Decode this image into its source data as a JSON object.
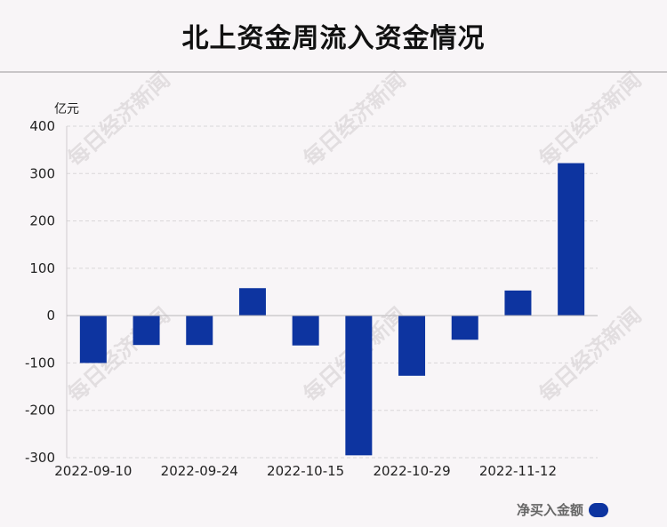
{
  "chart_data": {
    "type": "bar",
    "title": "北上资金周流入资金情况",
    "unit_label": "亿元",
    "xlabel": "",
    "ylabel": "",
    "ylim": [
      -300,
      400
    ],
    "yticks": [
      "400",
      "300",
      "200",
      "100",
      "0",
      "-100",
      "-200",
      "-300"
    ],
    "ytick_values": [
      400,
      300,
      200,
      100,
      0,
      -100,
      -200,
      -300
    ],
    "x_tick_labels": [
      "2022-09-10",
      "2022-09-24",
      "2022-10-15",
      "2022-10-29",
      "2022-11-12"
    ],
    "x_tick_bar_index": [
      0,
      2,
      4,
      6,
      8
    ],
    "values": [
      -100,
      -62,
      -62,
      58,
      -63,
      -295,
      -127,
      -51,
      53,
      322
    ],
    "series": [
      {
        "name": "净买入金额",
        "color": "#0d34a0"
      }
    ],
    "grid": true,
    "legend_position": "bottom-right"
  },
  "watermark": "每日经济新闻"
}
